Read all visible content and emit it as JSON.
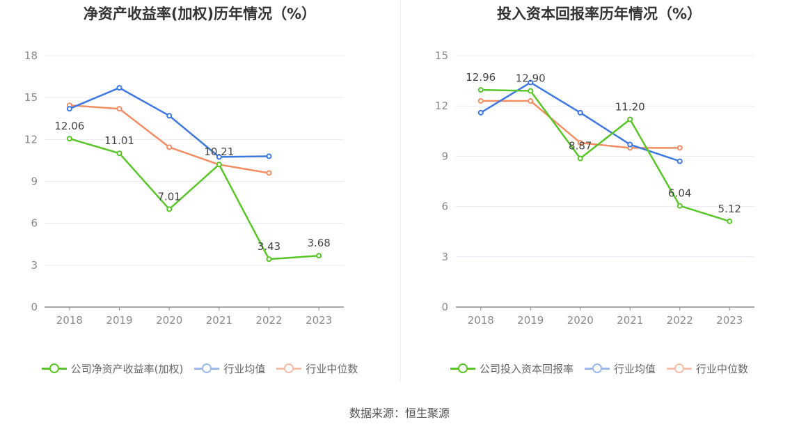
{
  "source": "数据来源：恒生聚源",
  "chart_data": [
    {
      "type": "line",
      "title": "净资产收益率(加权)历年情况（%）",
      "categories": [
        "2018",
        "2019",
        "2020",
        "2021",
        "2022",
        "2023"
      ],
      "ylim": [
        0,
        18
      ],
      "yticks": [
        "0",
        "3",
        "6",
        "9",
        "12",
        "15",
        "18"
      ],
      "grid": true,
      "legend_position": "bottom",
      "series": [
        {
          "name": "公司净资产收益率(加权)",
          "color": "#5ac528",
          "values": [
            12.06,
            11.01,
            7.01,
            10.21,
            3.43,
            3.68
          ],
          "labels": [
            "12.06",
            "11.01",
            "7.01",
            "10.21",
            "3.43",
            "3.68"
          ]
        },
        {
          "name": "行业均值",
          "color": "#3c78e0",
          "values": [
            14.2,
            15.7,
            13.7,
            10.75,
            10.8,
            null
          ]
        },
        {
          "name": "行业中位数",
          "color": "#f38d64",
          "values": [
            14.45,
            14.2,
            11.45,
            10.2,
            9.6,
            null
          ]
        }
      ]
    },
    {
      "type": "line",
      "title": "投入资本回报率历年情况（%）",
      "categories": [
        "2018",
        "2019",
        "2020",
        "2021",
        "2022",
        "2023"
      ],
      "ylim": [
        0,
        15
      ],
      "yticks": [
        "0",
        "3",
        "6",
        "9",
        "12",
        "15"
      ],
      "grid": true,
      "legend_position": "bottom",
      "series": [
        {
          "name": "公司投入资本回报率",
          "color": "#5ac528",
          "values": [
            12.96,
            12.9,
            8.87,
            11.2,
            6.04,
            5.12
          ],
          "labels": [
            "12.96",
            "12.90",
            "8.87",
            "11.20",
            "6.04",
            "5.12"
          ]
        },
        {
          "name": "行业均值",
          "color": "#3c78e0",
          "values": [
            11.6,
            13.4,
            11.6,
            9.7,
            8.7,
            null
          ]
        },
        {
          "name": "行业中位数",
          "color": "#f38d64",
          "values": [
            12.3,
            12.3,
            9.8,
            9.5,
            9.5,
            null
          ]
        }
      ]
    }
  ]
}
